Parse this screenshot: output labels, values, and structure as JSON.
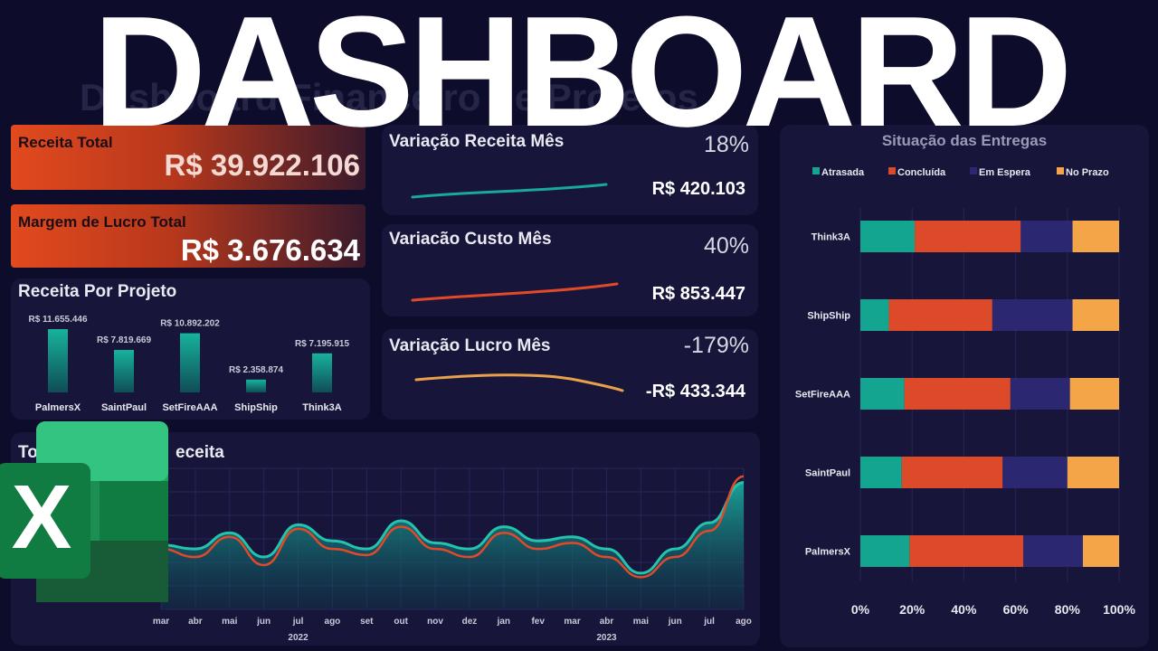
{
  "headline": "DASHBOARD",
  "ghost_title": "Dashboard Financeiro de Projetos",
  "kpis": {
    "receita_total": {
      "label": "Receita Total",
      "value": "R$ 39.922.106"
    },
    "margem_lucro": {
      "label": "Margem de Lucro Total",
      "value": "R$ 3.676.634"
    }
  },
  "variacoes": [
    {
      "label": "Variação Receita Mês",
      "pct": "18%",
      "value": "R$ 420.103",
      "color": "#1aa89a"
    },
    {
      "label": "Variacão Custo Mês",
      "pct": "40%",
      "value": "R$ 853.447",
      "color": "#e04a2a"
    },
    {
      "label": "Variação Lucro Mês",
      "pct": "-179%",
      "value": "-R$ 433.344",
      "color": "#e8a04a"
    }
  ],
  "receita_por_projeto": {
    "title": "Receita Por Projeto",
    "chart_data": {
      "type": "bar",
      "categories": [
        "PalmersX",
        "SaintPaul",
        "SetFireAAA",
        "ShipShip",
        "Think3A"
      ],
      "values": [
        11655446,
        7819669,
        10892202,
        2358874,
        7195915
      ],
      "labels": [
        "R$ 11.655.446",
        "R$ 7.819.669",
        "R$ 10.892.202",
        "R$ 2.358.874",
        "R$ 7.195.915"
      ]
    }
  },
  "tendencia": {
    "title": "Tendência de Receita",
    "visible_title": "To",
    "visible_title_tail": "eceita",
    "chart_data": {
      "type": "area",
      "x": [
        "mar",
        "abr",
        "mai",
        "jun",
        "jul",
        "ago",
        "set",
        "out",
        "nov",
        "dez",
        "jan",
        "fev",
        "mar",
        "abr",
        "mai",
        "jun",
        "jul",
        "ago"
      ],
      "year_labels": [
        "2022",
        "2023"
      ],
      "series": [
        {
          "values": [
            3.2,
            3.0,
            3.8,
            2.6,
            4.2,
            3.4,
            3.0,
            4.4,
            3.3,
            3.0,
            4.1,
            3.4,
            3.6,
            3.0,
            1.8,
            3.0,
            4.3,
            6.3
          ]
        },
        {
          "values": [
            3.0,
            2.6,
            3.6,
            2.2,
            4.0,
            3.0,
            2.7,
            4.1,
            3.0,
            2.6,
            3.8,
            3.0,
            3.3,
            2.6,
            1.6,
            2.6,
            3.9,
            6.6
          ]
        }
      ],
      "ylim": [
        0,
        7
      ]
    }
  },
  "entregas": {
    "title": "Situação das Entregas",
    "legend": [
      {
        "name": "Atrasada",
        "color": "#13a58f"
      },
      {
        "name": "Concluída",
        "color": "#dc4a2a"
      },
      {
        "name": "Em Espera",
        "color": "#2b2770"
      },
      {
        "name": "No Prazo",
        "color": "#f3a548"
      }
    ],
    "chart_data": {
      "type": "bar",
      "orientation": "horizontal",
      "stacked": "percent",
      "categories": [
        "Think3A",
        "ShipShip",
        "SetFireAAA",
        "SaintPaul",
        "PalmersX"
      ],
      "series": [
        {
          "name": "Atrasada",
          "values": [
            21,
            11,
            17,
            16,
            19
          ]
        },
        {
          "name": "Concluída",
          "values": [
            41,
            40,
            41,
            39,
            44
          ]
        },
        {
          "name": "Em Espera",
          "values": [
            20,
            31,
            23,
            25,
            23
          ]
        },
        {
          "name": "No Prazo",
          "values": [
            18,
            18,
            19,
            20,
            14
          ]
        }
      ],
      "xticks": [
        "0%",
        "20%",
        "40%",
        "60%",
        "80%",
        "100%"
      ],
      "xlim": [
        0,
        100
      ]
    }
  }
}
